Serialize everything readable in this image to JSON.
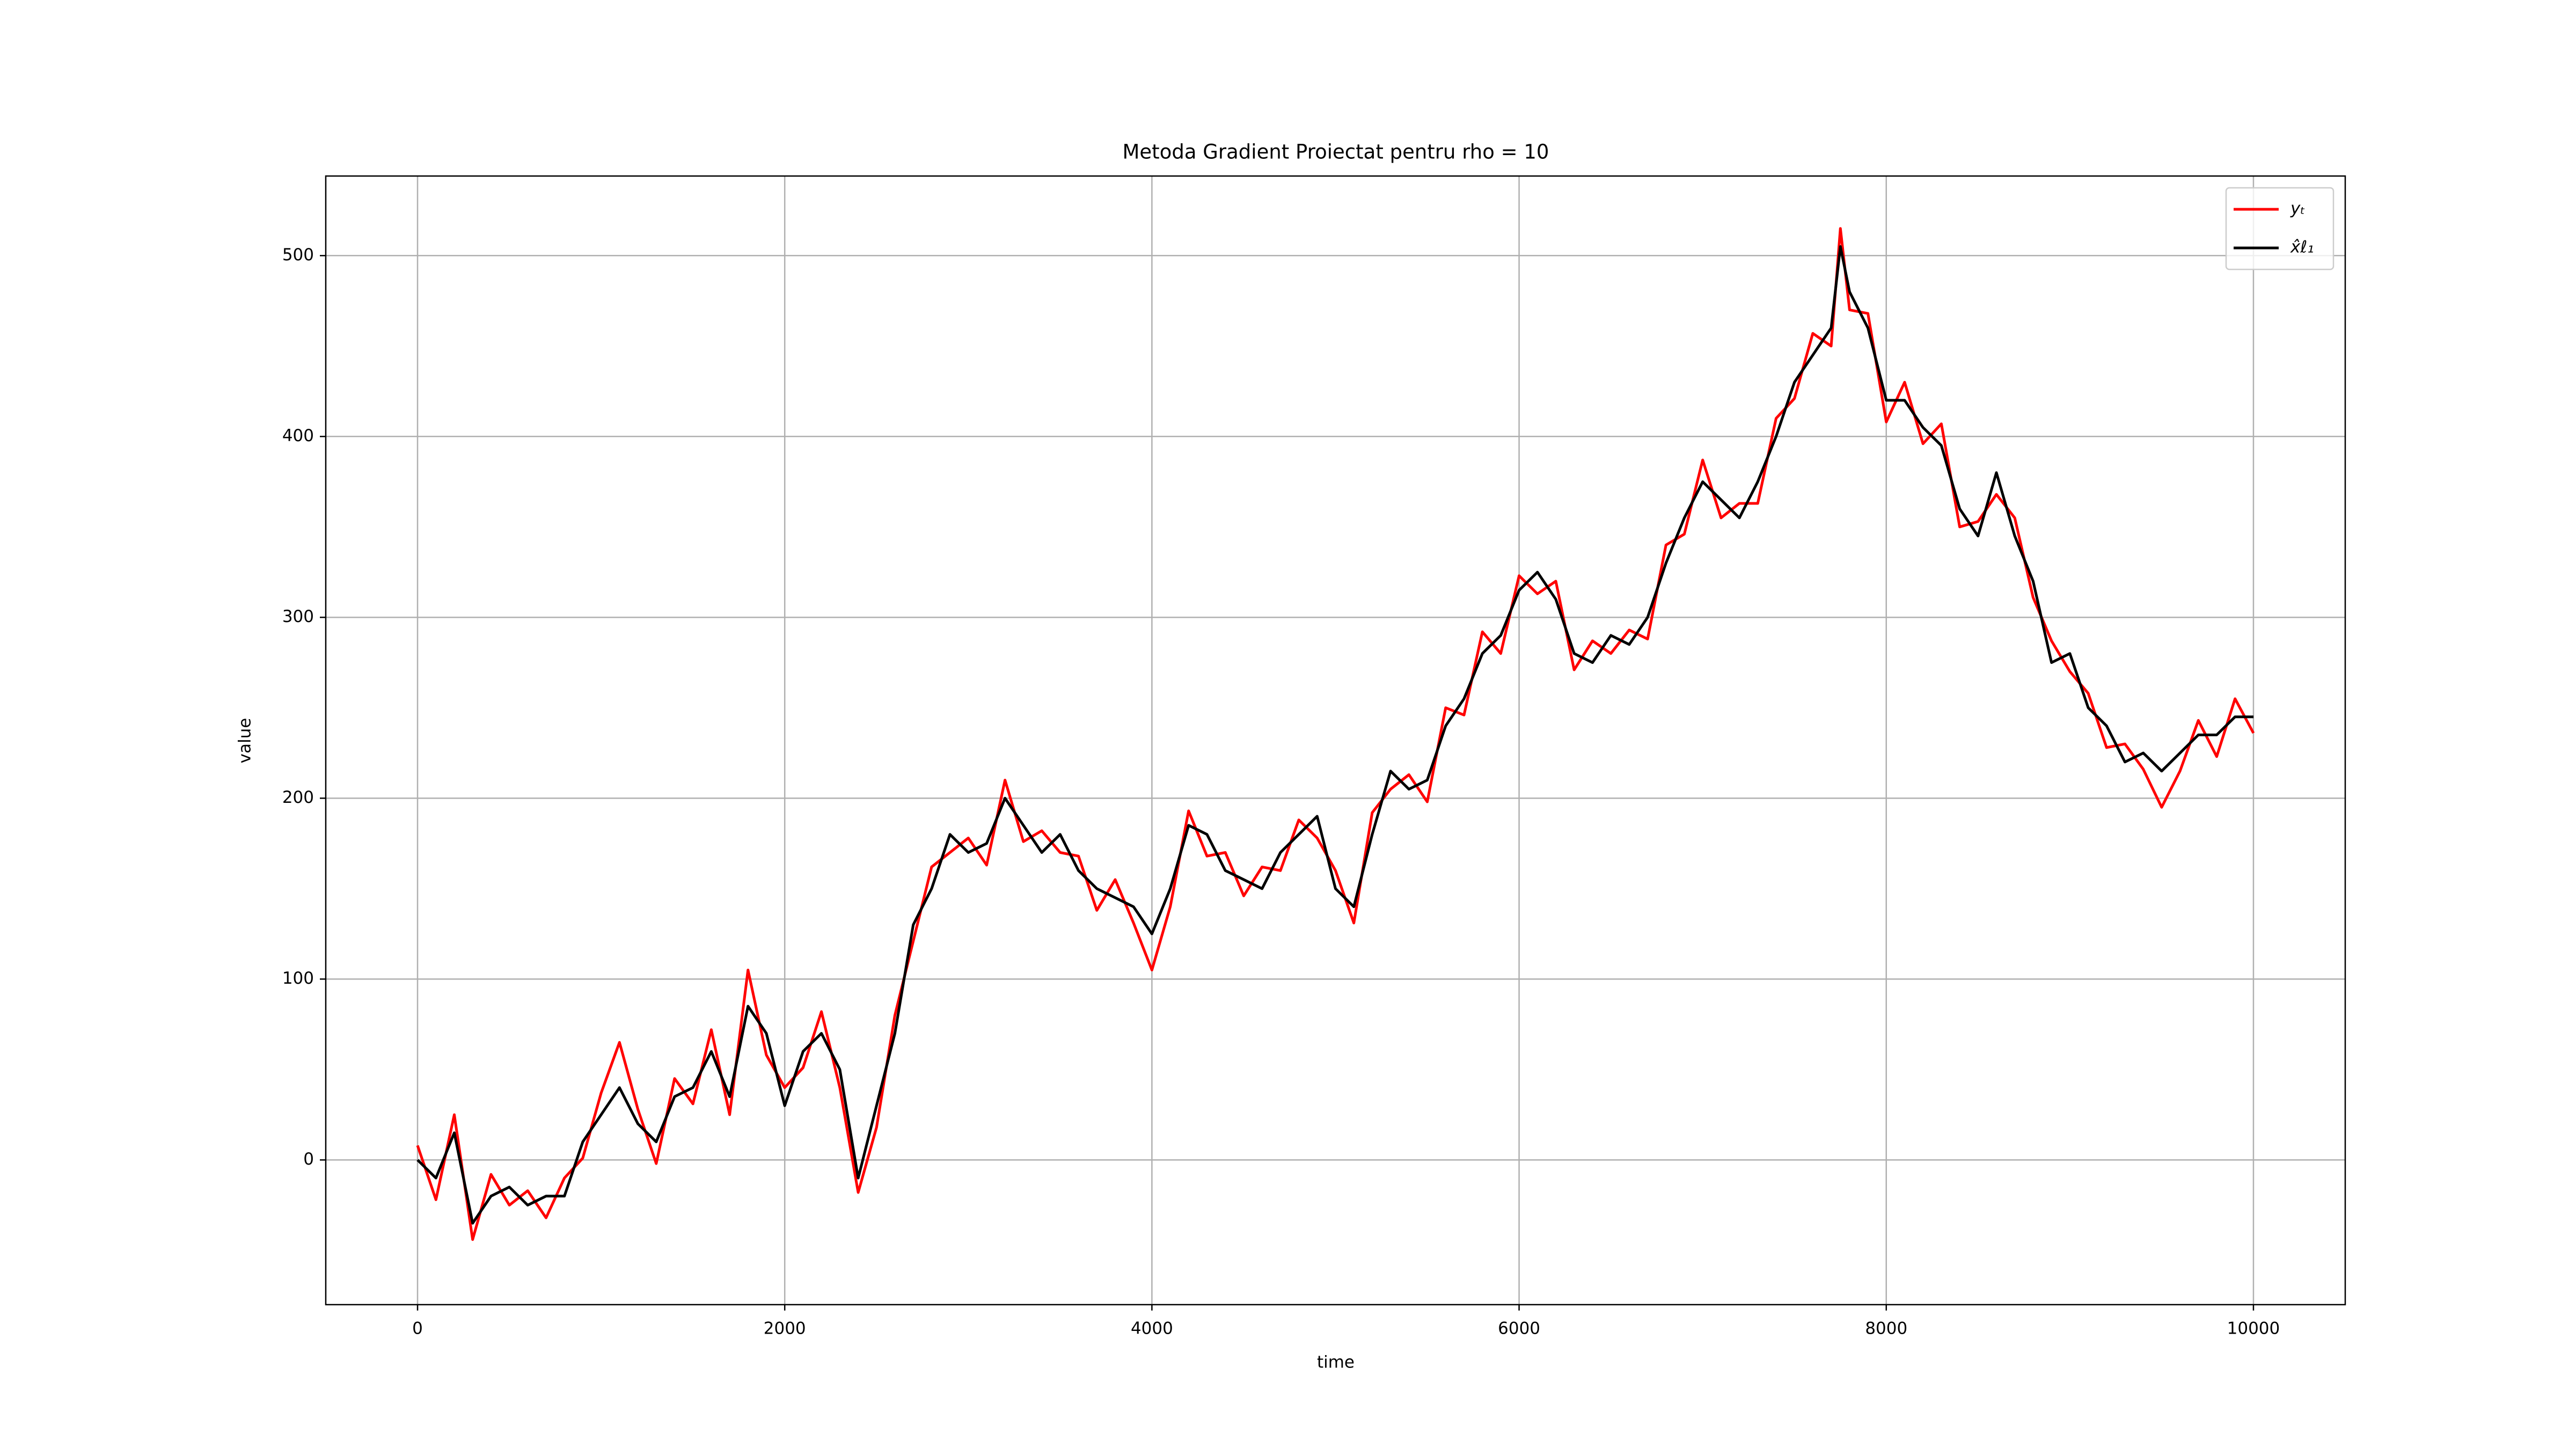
{
  "chart_data": {
    "type": "line",
    "title": "Metoda Gradient Proiectat pentru rho = 10",
    "xlabel": "time",
    "ylabel": "value",
    "x": [
      0,
      100,
      200,
      300,
      400,
      500,
      600,
      700,
      800,
      900,
      1000,
      1100,
      1200,
      1300,
      1400,
      1500,
      1600,
      1700,
      1800,
      1900,
      2000,
      2100,
      2200,
      2300,
      2400,
      2500,
      2600,
      2700,
      2800,
      2900,
      3000,
      3100,
      3200,
      3300,
      3400,
      3500,
      3600,
      3700,
      3800,
      3900,
      4000,
      4100,
      4200,
      4300,
      4400,
      4500,
      4600,
      4700,
      4800,
      4900,
      5000,
      5100,
      5200,
      5300,
      5400,
      5500,
      5600,
      5700,
      5800,
      5900,
      6000,
      6100,
      6200,
      6300,
      6400,
      6500,
      6600,
      6700,
      6800,
      6900,
      7000,
      7100,
      7200,
      7300,
      7400,
      7500,
      7600,
      7700,
      7750,
      7800,
      7900,
      8000,
      8100,
      8200,
      8300,
      8400,
      8500,
      8600,
      8700,
      8800,
      8900,
      9000,
      9100,
      9200,
      9300,
      9400,
      9500,
      9600,
      9700,
      9800,
      9900,
      10000
    ],
    "series": [
      {
        "name": "yₜ",
        "color": "#ff0000",
        "values": [
          8,
          -22,
          25,
          -44,
          -8,
          -25,
          -17,
          -32,
          -10,
          1,
          37,
          65,
          28,
          -2,
          45,
          31,
          72,
          25,
          105,
          58,
          40,
          51,
          82,
          40,
          -18,
          18,
          80,
          121,
          162,
          170,
          178,
          163,
          210,
          176,
          182,
          170,
          168,
          138,
          155,
          131,
          105,
          140,
          193,
          168,
          170,
          146,
          162,
          160,
          188,
          178,
          160,
          131,
          192,
          205,
          213,
          198,
          250,
          246,
          292,
          280,
          323,
          313,
          320,
          271,
          287,
          280,
          293,
          288,
          340,
          346,
          387,
          355,
          363,
          363,
          410,
          421,
          457,
          450,
          515,
          470,
          468,
          408,
          430,
          396,
          407,
          350,
          353,
          368,
          355,
          311,
          287,
          270,
          258,
          228,
          230,
          216,
          195,
          215,
          243,
          223,
          255,
          236
        ]
      },
      {
        "name": "x̂ℓ₁",
        "color": "#000000",
        "values": [
          0,
          -10,
          15,
          -35,
          -20,
          -15,
          -25,
          -20,
          -20,
          10,
          25,
          40,
          20,
          10,
          35,
          40,
          60,
          35,
          85,
          70,
          30,
          60,
          70,
          50,
          -10,
          30,
          70,
          130,
          150,
          180,
          170,
          175,
          200,
          185,
          170,
          180,
          160,
          150,
          145,
          140,
          125,
          150,
          185,
          180,
          160,
          155,
          150,
          170,
          180,
          190,
          150,
          140,
          180,
          215,
          205,
          210,
          240,
          255,
          280,
          290,
          315,
          325,
          310,
          280,
          275,
          290,
          285,
          300,
          330,
          355,
          375,
          365,
          355,
          375,
          400,
          430,
          445,
          460,
          505,
          480,
          460,
          420,
          420,
          405,
          395,
          360,
          345,
          380,
          345,
          320,
          275,
          280,
          250,
          240,
          220,
          225,
          215,
          225,
          235,
          235,
          245,
          245
        ]
      }
    ],
    "xlim": [
      -500,
      10500
    ],
    "ylim": [
      -80,
      544
    ],
    "xticks": [
      0,
      2000,
      4000,
      6000,
      8000,
      10000
    ],
    "yticks": [
      0,
      100,
      200,
      300,
      400,
      500
    ],
    "grid": true,
    "legend": "upper right"
  }
}
